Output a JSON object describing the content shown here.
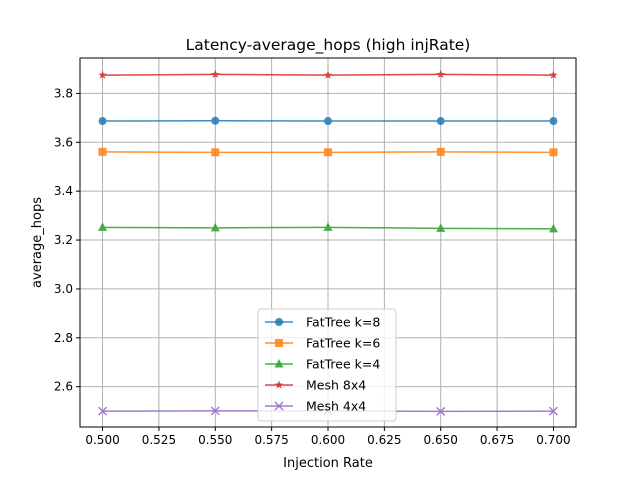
{
  "chart_data": {
    "type": "line",
    "title": "Latency-average_hops (high injRate)",
    "xlabel": "Injection Rate",
    "ylabel": "average_hops",
    "x": [
      0.5,
      0.55,
      0.6,
      0.65,
      0.7
    ],
    "xlim": [
      0.49,
      0.71
    ],
    "ylim": [
      2.435,
      3.945
    ],
    "xticks": [
      "0.500",
      "0.525",
      "0.550",
      "0.575",
      "0.600",
      "0.625",
      "0.650",
      "0.675",
      "0.700"
    ],
    "yticks": [
      "2.6",
      "2.8",
      "3.0",
      "3.2",
      "3.4",
      "3.6",
      "3.8"
    ],
    "grid": true,
    "legend_position": "lower-center",
    "series": [
      {
        "name": "FatTree k=8",
        "marker": "circle",
        "color": "#1f77b4",
        "values": [
          3.687,
          3.688,
          3.687,
          3.687,
          3.687
        ]
      },
      {
        "name": "FatTree k=6",
        "marker": "square",
        "color": "#ff7f0e",
        "values": [
          3.561,
          3.559,
          3.559,
          3.561,
          3.559
        ]
      },
      {
        "name": "FatTree k=4",
        "marker": "triangle",
        "color": "#2ca02c",
        "values": [
          3.252,
          3.25,
          3.252,
          3.248,
          3.246
        ]
      },
      {
        "name": "Mesh 8x4",
        "marker": "star",
        "color": "#d62728",
        "values": [
          3.875,
          3.878,
          3.875,
          3.878,
          3.875
        ]
      },
      {
        "name": "Mesh 4x4",
        "marker": "x",
        "color": "#9467bd",
        "values": [
          2.5,
          2.501,
          2.501,
          2.499,
          2.5
        ]
      }
    ]
  }
}
